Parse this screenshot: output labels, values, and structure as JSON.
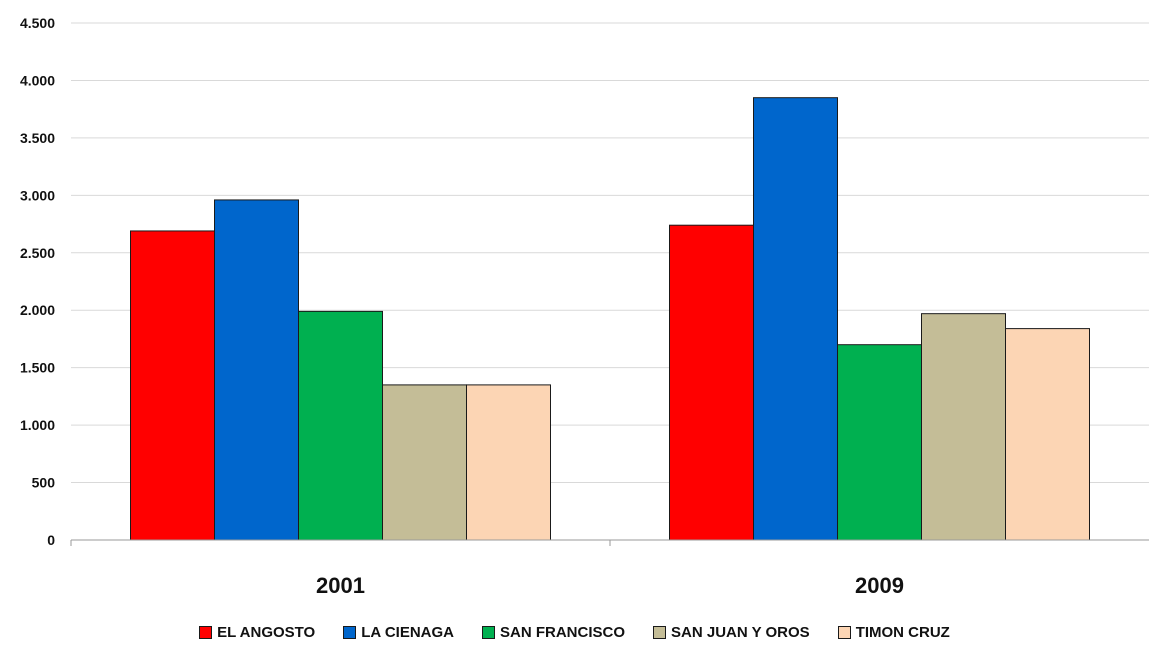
{
  "chart_data": {
    "type": "bar",
    "categories": [
      "2001",
      "2009"
    ],
    "series": [
      {
        "name": "EL ANGOSTO",
        "color": "#ff0000",
        "values": [
          2690,
          2740
        ]
      },
      {
        "name": "LA CIENAGA",
        "color": "#0066cc",
        "values": [
          2960,
          3850
        ]
      },
      {
        "name": "SAN FRANCISCO",
        "color": "#00b050",
        "values": [
          1990,
          1700
        ]
      },
      {
        "name": "SAN JUAN Y OROS",
        "color": "#c4bd97",
        "values": [
          1350,
          1970
        ]
      },
      {
        "name": "TIMON CRUZ",
        "color": "#fcd5b4",
        "values": [
          1350,
          1840
        ]
      }
    ],
    "ylim": [
      0,
      4500
    ],
    "yticks": [
      0,
      500,
      1000,
      1500,
      2000,
      2500,
      3000,
      3500,
      4000,
      4500
    ],
    "ytick_labels": [
      "0",
      "500",
      "1.000",
      "1.500",
      "2.000",
      "2.500",
      "3.000",
      "3.500",
      "4.000",
      "4.500"
    ],
    "grid": true,
    "legend_position": "bottom",
    "title": "",
    "xlabel": "",
    "ylabel": ""
  }
}
